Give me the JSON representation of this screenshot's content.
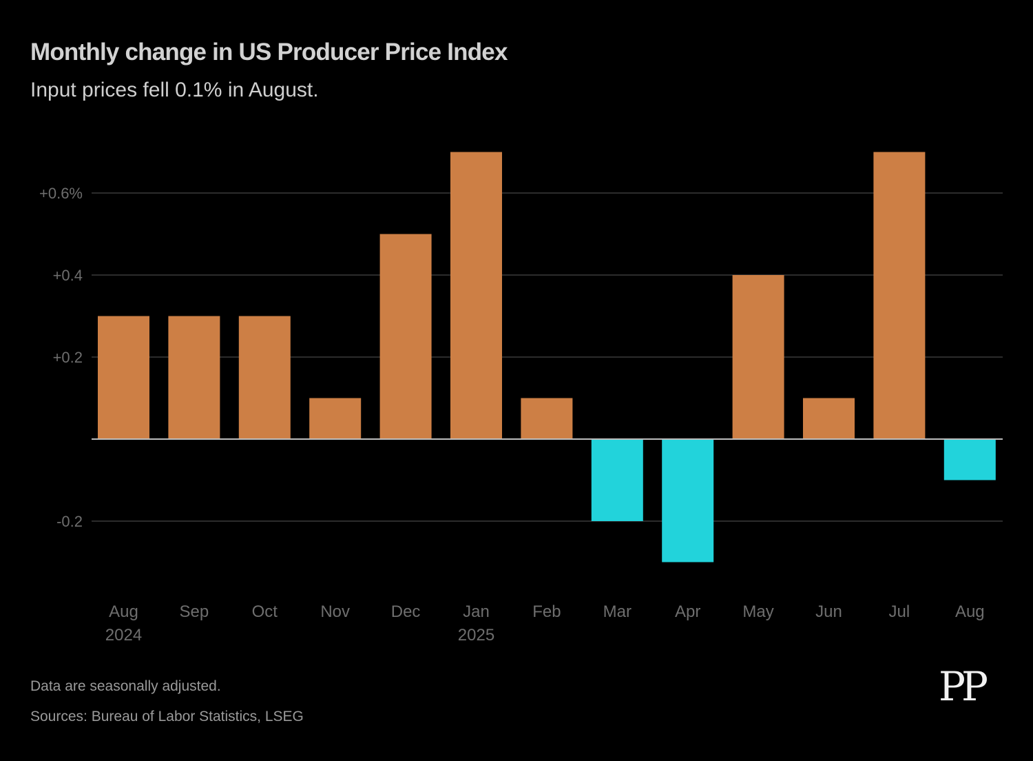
{
  "header": {
    "title": "Monthly change in US Producer Price Index",
    "subtitle": "Input prices fell 0.1% in August."
  },
  "footer": {
    "note": "Data are seasonally adjusted.",
    "sources": "Sources: Bureau of Labor Statistics, LSEG",
    "logo": "PP"
  },
  "colors": {
    "positive": "#cd7f45",
    "negative": "#22d3db",
    "grid": "#3a3a3a",
    "zero_line": "#bdbdbd",
    "tick_text": "#6e6e6e",
    "background": "#000000"
  },
  "chart_data": {
    "type": "bar",
    "title": "Monthly change in US Producer Price Index",
    "subtitle": "Input prices fell 0.1% in August.",
    "xlabel": "",
    "ylabel": "",
    "categories": [
      "Aug",
      "Sep",
      "Oct",
      "Nov",
      "Dec",
      "Jan",
      "Feb",
      "Mar",
      "Apr",
      "May",
      "Jun",
      "Jul",
      "Aug"
    ],
    "category_sublabels": [
      "2024",
      "",
      "",
      "",
      "",
      "2025",
      "",
      "",
      "",
      "",
      "",
      "",
      ""
    ],
    "values": [
      0.3,
      0.3,
      0.3,
      0.1,
      0.5,
      0.7,
      0.1,
      -0.2,
      -0.3,
      0.4,
      0.1,
      0.7,
      -0.1
    ],
    "ylim": [
      -0.3,
      0.7
    ],
    "yticks": [
      {
        "value": 0.6,
        "label": "+0.6%"
      },
      {
        "value": 0.4,
        "label": "+0.4"
      },
      {
        "value": 0.2,
        "label": "+0.2"
      },
      {
        "value": -0.2,
        "label": "-0.2"
      }
    ],
    "grid": true,
    "legend": "none",
    "units": "percent change"
  }
}
